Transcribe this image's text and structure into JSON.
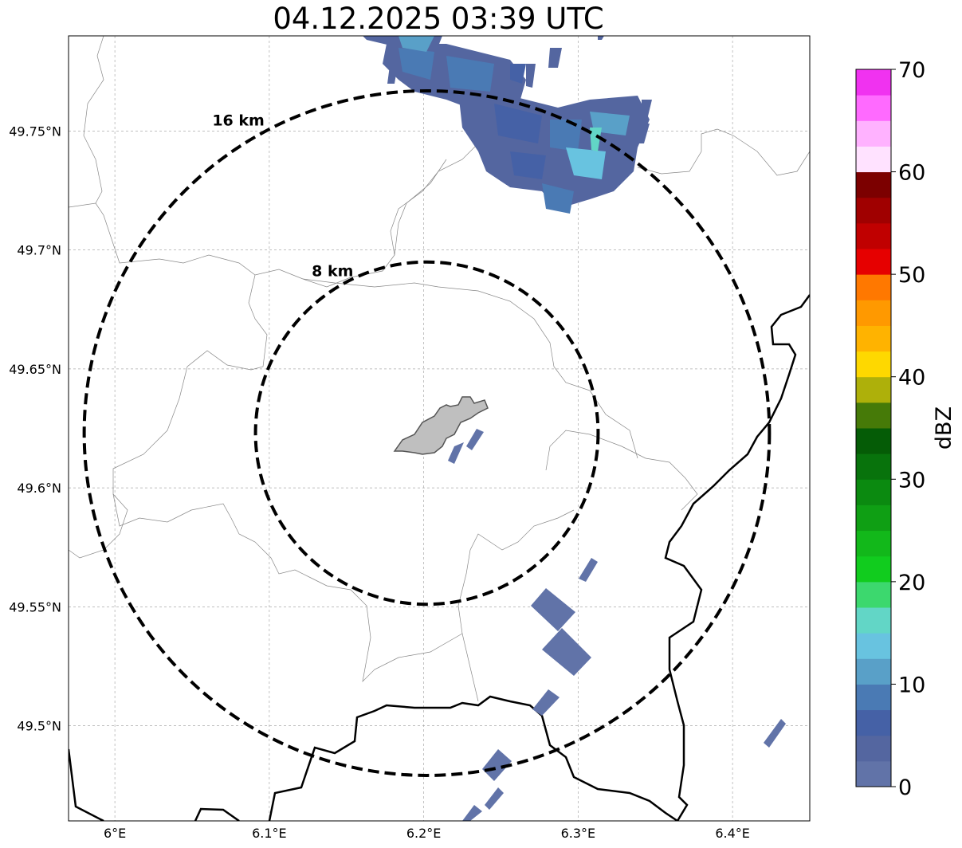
{
  "title": "04.12.2025 03:39 UTC",
  "map": {
    "lon_range": [
      5.97,
      6.45
    ],
    "lat_range": [
      49.46,
      49.79
    ],
    "lon_ticks": [
      {
        "value": 6.0,
        "label": "6°E"
      },
      {
        "value": 6.1,
        "label": "6.1°E"
      },
      {
        "value": 6.2,
        "label": "6.2°E"
      },
      {
        "value": 6.3,
        "label": "6.3°E"
      },
      {
        "value": 6.4,
        "label": "6.4°E"
      }
    ],
    "lat_ticks": [
      {
        "value": 49.5,
        "label": "49.5°N"
      },
      {
        "value": 49.55,
        "label": "49.55°N"
      },
      {
        "value": 49.6,
        "label": "49.6°N"
      },
      {
        "value": 49.65,
        "label": "49.65°N"
      },
      {
        "value": 49.7,
        "label": "49.7°N"
      },
      {
        "value": 49.75,
        "label": "49.75°N"
      }
    ],
    "grid": true,
    "center": {
      "lon": 6.202,
      "lat": 49.623
    },
    "rings": [
      {
        "radius_km": 8,
        "label": "8 km"
      },
      {
        "radius_km": 16,
        "label": "16 km"
      }
    ],
    "echo_color": "#6173a8"
  },
  "colorbar": {
    "label": "dBZ",
    "min": 0,
    "max": 70,
    "ticks": [
      "0",
      "10",
      "20",
      "30",
      "40",
      "50",
      "60",
      "70"
    ],
    "colors": [
      "#6173a8",
      "#5466a0",
      "#4561a6",
      "#4a7ab4",
      "#59a0c8",
      "#68c3e0",
      "#62d6c6",
      "#3cd86e",
      "#11cc1e",
      "#12b81a",
      "#0f9f14",
      "#0b8a10",
      "#08730c",
      "#055c06",
      "#467a08",
      "#aeb00a",
      "#fed800",
      "#ffb300",
      "#ff9900",
      "#ff7800",
      "#e60000",
      "#c00000",
      "#a00000",
      "#7c0000",
      "#ffe2ff",
      "#ffb2ff",
      "#ff6aff",
      "#f032f0"
    ]
  }
}
